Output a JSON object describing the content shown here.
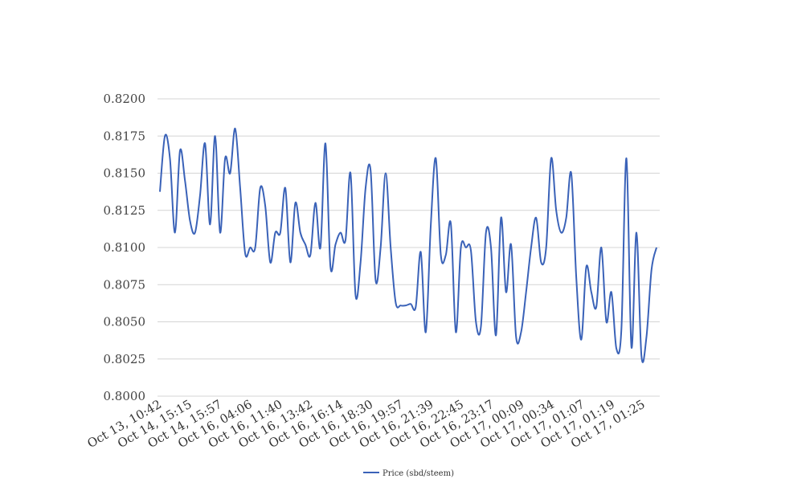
{
  "chart_data": {
    "type": "line",
    "title": "",
    "xlabel": "",
    "ylabel": "",
    "ylim": [
      0.8,
      0.82
    ],
    "yticks": [
      "0.8000",
      "0.8025",
      "0.8050",
      "0.8075",
      "0.8100",
      "0.8125",
      "0.8150",
      "0.8175",
      "0.8200"
    ],
    "xtick_labels": [
      "Oct 13, 10:42",
      "Oct 14, 15:15",
      "Oct 14, 15:57",
      "Oct 16, 04:06",
      "Oct 16, 11:40",
      "Oct 16, 13:42",
      "Oct 16, 16:14",
      "Oct 16, 18:30",
      "Oct 16, 19:57",
      "Oct 16, 21:39",
      "Oct 16, 22:45",
      "Oct 16, 23:17",
      "Oct 17, 00:09",
      "Oct 17, 00:34",
      "Oct 17, 01:07",
      "Oct 17, 01:19",
      "Oct 17, 01:25"
    ],
    "grid": true,
    "legend_position": "bottom",
    "series": [
      {
        "name": "Price (sbd/steem)",
        "color": "#3a62b8",
        "values": [
          0.81375,
          0.8175,
          0.816,
          0.811,
          0.8165,
          0.8145,
          0.8118,
          0.811,
          0.8135,
          0.817,
          0.81155,
          0.8175,
          0.811,
          0.816,
          0.815,
          0.818,
          0.814,
          0.8096,
          0.81,
          0.81,
          0.814,
          0.8128,
          0.809,
          0.811,
          0.811,
          0.814,
          0.809,
          0.813,
          0.811,
          0.8102,
          0.8095,
          0.813,
          0.81,
          0.817,
          0.8087,
          0.8102,
          0.811,
          0.8105,
          0.815,
          0.8068,
          0.809,
          0.814,
          0.8152,
          0.8078,
          0.81,
          0.815,
          0.81,
          0.8063,
          0.8061,
          0.8061,
          0.8062,
          0.806,
          0.8097,
          0.8043,
          0.8115,
          0.816,
          0.8095,
          0.8095,
          0.8116,
          0.8043,
          0.81,
          0.81,
          0.8098,
          0.805,
          0.8047,
          0.811,
          0.81,
          0.8041,
          0.812,
          0.807,
          0.8102,
          0.804,
          0.8043,
          0.807,
          0.81,
          0.812,
          0.809,
          0.81,
          0.816,
          0.8125,
          0.811,
          0.812,
          0.815,
          0.808,
          0.8038,
          0.8087,
          0.807,
          0.806,
          0.81,
          0.805,
          0.807,
          0.8032,
          0.8045,
          0.816,
          0.8033,
          0.811,
          0.8027,
          0.804,
          0.8085,
          0.81
        ]
      }
    ]
  }
}
